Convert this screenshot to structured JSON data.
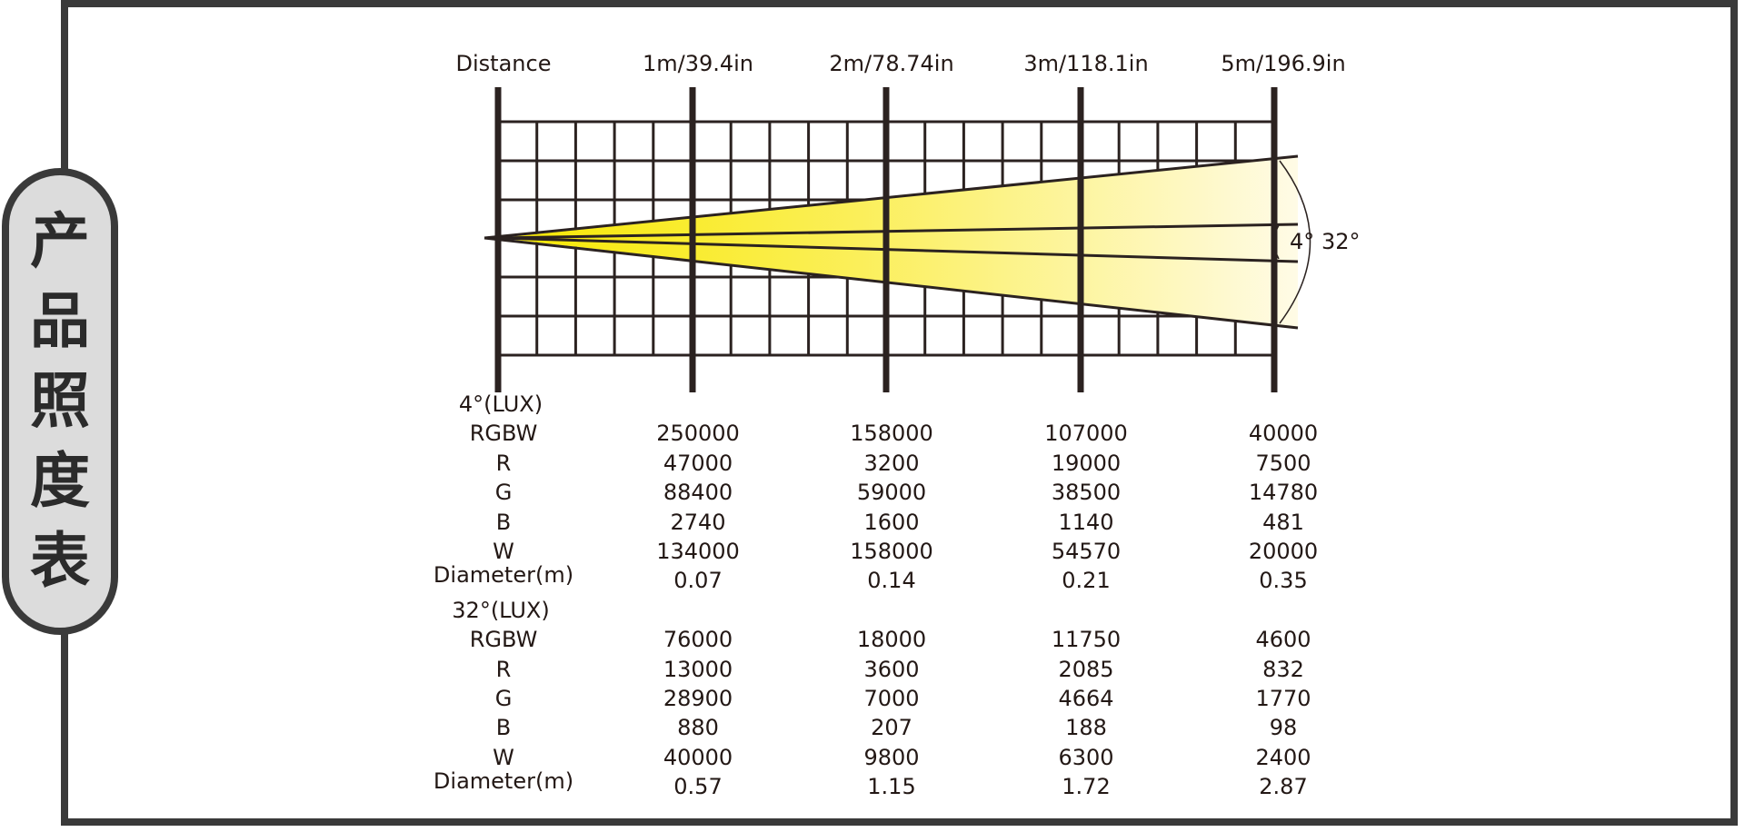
{
  "side_title": [
    "产",
    "品",
    "照",
    "度",
    "表"
  ],
  "header": {
    "distance_label": "Distance",
    "columns": [
      "1m/39.4in",
      "2m/78.74in",
      "3m/118.1in",
      "5m/196.9in"
    ]
  },
  "angles": {
    "narrow": "4°",
    "wide": "32°"
  },
  "beam_colors": {
    "start": "#f7e800",
    "end": "#fffbe6",
    "grid": "#2b2220"
  },
  "sections": [
    {
      "title": "4°(LUX)",
      "rows": [
        {
          "label": "RGBW",
          "values": [
            "250000",
            "158000",
            "107000",
            "40000"
          ]
        },
        {
          "label": "R",
          "values": [
            "47000",
            "3200",
            "19000",
            "7500"
          ]
        },
        {
          "label": "G",
          "values": [
            "88400",
            "59000",
            "38500",
            "14780"
          ]
        },
        {
          "label": "B",
          "values": [
            "2740",
            "1600",
            "1140",
            "481"
          ]
        },
        {
          "label": "W",
          "values": [
            "134000",
            "158000",
            "54570",
            "20000"
          ]
        },
        {
          "label": "Diameter(m)",
          "values": [
            "0.07",
            "0.14",
            "0.21",
            "0.35"
          ]
        }
      ]
    },
    {
      "title": "32°(LUX)",
      "rows": [
        {
          "label": "RGBW",
          "values": [
            "76000",
            "18000",
            "11750",
            "4600"
          ]
        },
        {
          "label": "R",
          "values": [
            "13000",
            "3600",
            "2085",
            "832"
          ]
        },
        {
          "label": "G",
          "values": [
            "28900",
            "7000",
            "4664",
            "1770"
          ]
        },
        {
          "label": "B",
          "values": [
            "880",
            "207",
            "188",
            "98"
          ]
        },
        {
          "label": "W",
          "values": [
            "40000",
            "9800",
            "6300",
            "2400"
          ]
        },
        {
          "label": "Diameter(m)",
          "values": [
            "0.57",
            "1.15",
            "1.72",
            "2.87"
          ]
        }
      ]
    }
  ]
}
